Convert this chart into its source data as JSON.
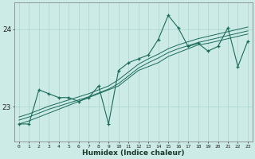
{
  "xlabel": "Humidex (Indice chaleur)",
  "x_values": [
    0,
    1,
    2,
    3,
    4,
    5,
    6,
    7,
    8,
    9,
    10,
    11,
    12,
    13,
    14,
    15,
    16,
    17,
    18,
    19,
    20,
    21,
    22,
    23
  ],
  "main_line": [
    22.78,
    22.78,
    23.22,
    23.17,
    23.12,
    23.12,
    23.07,
    23.12,
    23.27,
    22.78,
    23.47,
    23.57,
    23.62,
    23.67,
    23.87,
    24.18,
    24.02,
    23.78,
    23.82,
    23.72,
    23.78,
    24.02,
    23.52,
    23.85
  ],
  "trend_line1": [
    22.78,
    22.82,
    22.87,
    22.92,
    22.97,
    23.02,
    23.07,
    23.12,
    23.17,
    23.22,
    23.27,
    23.37,
    23.47,
    23.52,
    23.57,
    23.65,
    23.7,
    23.75,
    23.8,
    23.82,
    23.85,
    23.88,
    23.91,
    23.94
  ],
  "trend_line2": [
    22.83,
    22.87,
    22.92,
    22.97,
    23.01,
    23.05,
    23.09,
    23.13,
    23.18,
    23.23,
    23.3,
    23.4,
    23.5,
    23.57,
    23.63,
    23.7,
    23.75,
    23.79,
    23.83,
    23.86,
    23.89,
    23.92,
    23.95,
    23.98
  ],
  "trend_line3": [
    22.87,
    22.91,
    22.96,
    23.01,
    23.05,
    23.09,
    23.13,
    23.17,
    23.22,
    23.27,
    23.35,
    23.45,
    23.55,
    23.62,
    23.68,
    23.75,
    23.8,
    23.84,
    23.88,
    23.91,
    23.94,
    23.97,
    24.0,
    24.03
  ],
  "bg_color": "#cceae6",
  "grid_color": "#aad4cf",
  "line_color": "#1a6b5a",
  "ylim": [
    22.55,
    24.35
  ],
  "yticks": [
    23,
    24
  ],
  "xlim": [
    -0.5,
    23.5
  ],
  "figsize": [
    3.2,
    2.0
  ],
  "dpi": 100
}
